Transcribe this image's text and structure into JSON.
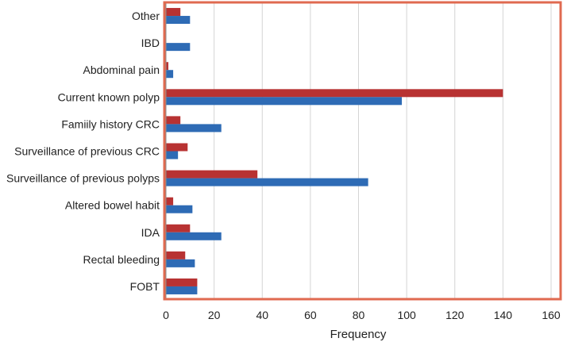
{
  "chart_data": {
    "type": "bar",
    "orientation": "horizontal",
    "title": "",
    "xlabel": "Frequency",
    "ylabel": "",
    "xlim": [
      0,
      160
    ],
    "xticks": [
      0,
      20,
      40,
      60,
      80,
      100,
      120,
      140,
      160
    ],
    "grid": true,
    "legend": "none",
    "categories": [
      "Other",
      "IBD",
      "Abdominal pain",
      "Current known polyp",
      "Famiily history CRC",
      "Surveillance of previous CRC",
      "Surveillance of previous polyps",
      "Altered bowel habit",
      "IDA",
      "Rectal bleeding",
      "FOBT"
    ],
    "series": [
      {
        "color": "#b83232",
        "values": [
          6,
          0,
          1,
          140,
          6,
          9,
          38,
          3,
          10,
          8,
          13
        ]
      },
      {
        "color": "#2e6bb5",
        "values": [
          10,
          10,
          3,
          98,
          23,
          5,
          84,
          11,
          23,
          12,
          13
        ]
      }
    ],
    "frame_color": "#e06a50"
  }
}
